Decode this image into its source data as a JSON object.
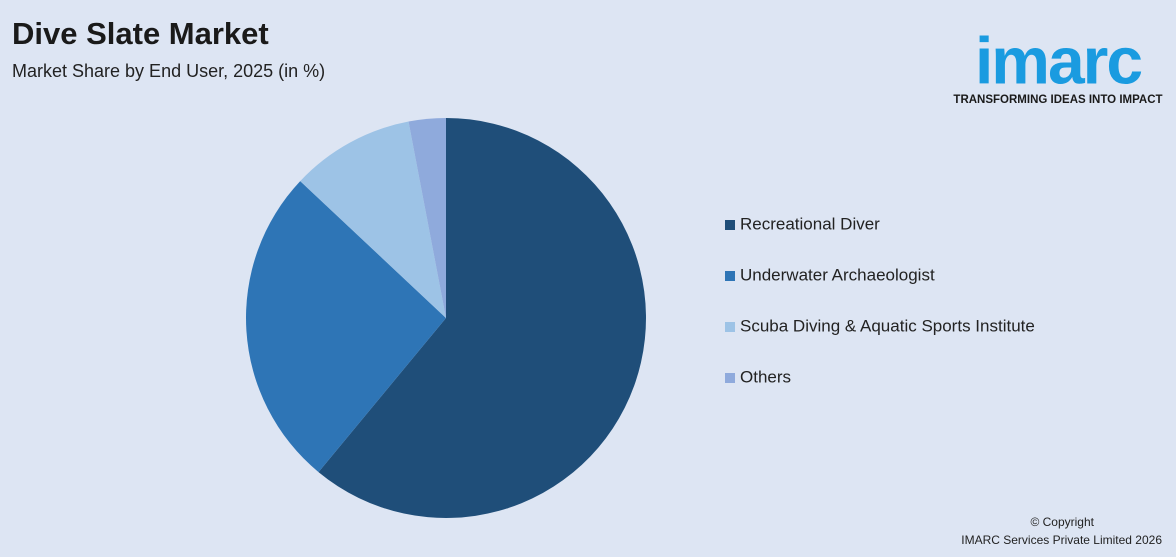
{
  "chart_data": {
    "type": "pie",
    "title": "Dive Slate Market",
    "subtitle": "Market Share by End User, 2025 (in %)",
    "categories": [
      "Recreational Diver",
      "Underwater Archaeologist",
      "Scuba Diving & Aquatic Sports Institute",
      "Others"
    ],
    "values": [
      61,
      26,
      10,
      3
    ],
    "colors": [
      "#1f4e79",
      "#2e75b6",
      "#9dc3e6",
      "#8faadc"
    ],
    "legend": "right"
  },
  "logo": {
    "name": "imarc",
    "tagline": "TRANSFORMING IDEAS INTO IMPACT"
  },
  "footer": {
    "copyright": "© Copyright",
    "company": "IMARC Services Private Limited 2026"
  }
}
